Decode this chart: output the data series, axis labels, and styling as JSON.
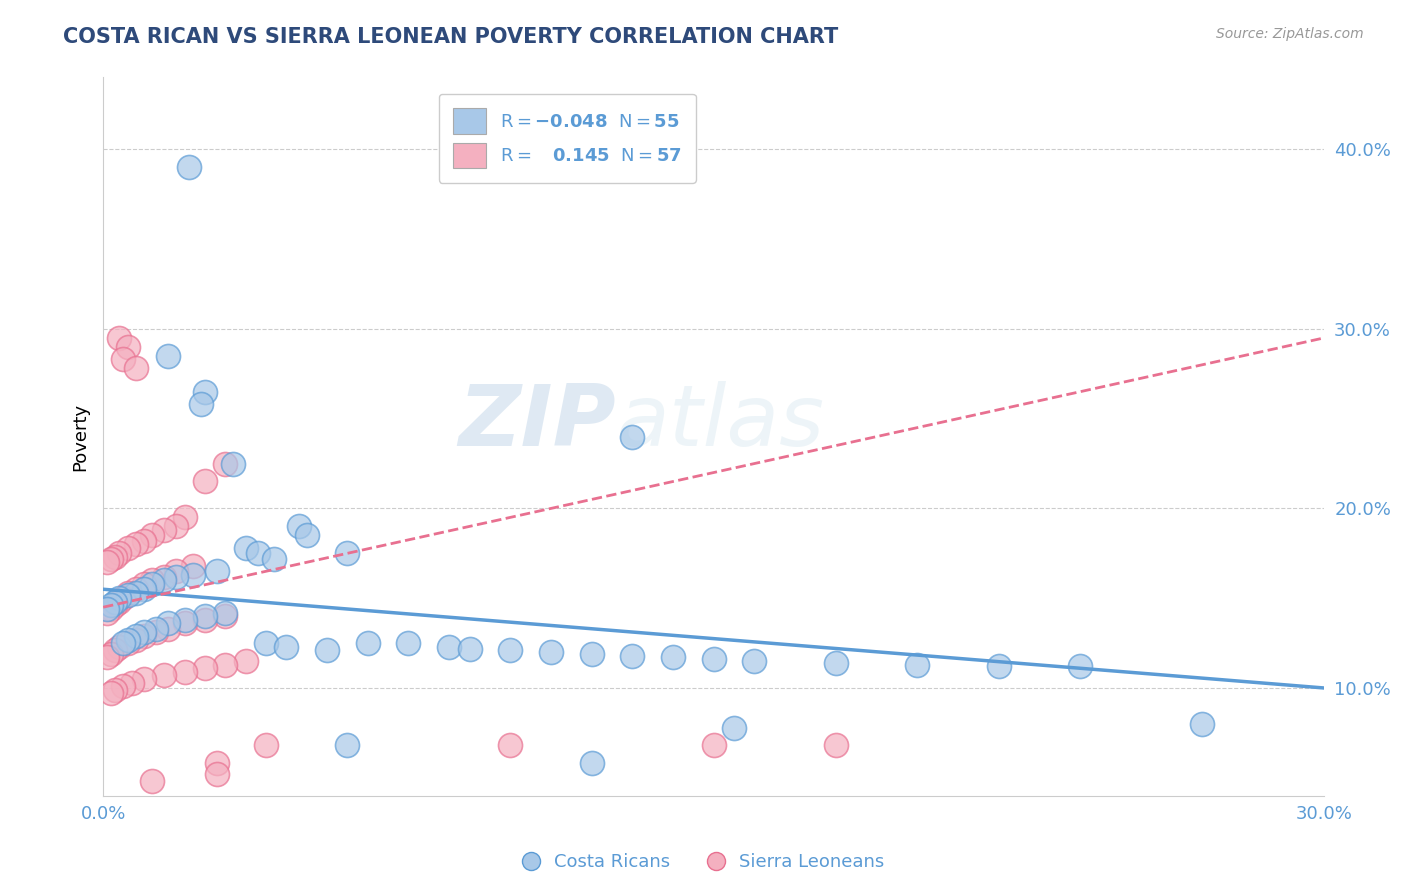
{
  "title": "COSTA RICAN VS SIERRA LEONEAN POVERTY CORRELATION CHART",
  "source": "Source: ZipAtlas.com",
  "ylabel_label": "Poverty",
  "ylabel_ticks": [
    0.1,
    0.2,
    0.3,
    0.4
  ],
  "ylabel_tick_labels": [
    "10.0%",
    "20.0%",
    "30.0%",
    "40.0%"
  ],
  "xlim": [
    0.0,
    0.3
  ],
  "ylim": [
    0.04,
    0.44
  ],
  "legend_bottom": [
    "Costa Ricans",
    "Sierra Leoneans"
  ],
  "blue_color": "#5b9bd5",
  "pink_color": "#e87090",
  "blue_fill": "#a8c8e8",
  "pink_fill": "#f4b0c0",
  "watermark_zip": "ZIP",
  "watermark_atlas": "atlas",
  "title_color": "#2e4a7a",
  "axis_label_color": "#5b9bd5",
  "grid_color": "#cccccc",
  "background_color": "#ffffff",
  "blue_scatter": [
    [
      0.021,
      0.39
    ],
    [
      0.016,
      0.285
    ],
    [
      0.025,
      0.265
    ],
    [
      0.024,
      0.258
    ],
    [
      0.13,
      0.24
    ],
    [
      0.032,
      0.225
    ],
    [
      0.048,
      0.19
    ],
    [
      0.05,
      0.185
    ],
    [
      0.035,
      0.178
    ],
    [
      0.038,
      0.175
    ],
    [
      0.042,
      0.172
    ],
    [
      0.06,
      0.175
    ],
    [
      0.028,
      0.165
    ],
    [
      0.022,
      0.163
    ],
    [
      0.018,
      0.162
    ],
    [
      0.015,
      0.16
    ],
    [
      0.012,
      0.158
    ],
    [
      0.01,
      0.155
    ],
    [
      0.008,
      0.153
    ],
    [
      0.006,
      0.152
    ],
    [
      0.004,
      0.15
    ],
    [
      0.003,
      0.148
    ],
    [
      0.002,
      0.146
    ],
    [
      0.001,
      0.144
    ],
    [
      0.03,
      0.142
    ],
    [
      0.025,
      0.14
    ],
    [
      0.02,
      0.138
    ],
    [
      0.016,
      0.136
    ],
    [
      0.013,
      0.133
    ],
    [
      0.01,
      0.131
    ],
    [
      0.008,
      0.129
    ],
    [
      0.006,
      0.127
    ],
    [
      0.005,
      0.125
    ],
    [
      0.04,
      0.125
    ],
    [
      0.045,
      0.123
    ],
    [
      0.055,
      0.121
    ],
    [
      0.065,
      0.125
    ],
    [
      0.075,
      0.125
    ],
    [
      0.085,
      0.123
    ],
    [
      0.09,
      0.122
    ],
    [
      0.1,
      0.121
    ],
    [
      0.11,
      0.12
    ],
    [
      0.12,
      0.119
    ],
    [
      0.13,
      0.118
    ],
    [
      0.14,
      0.117
    ],
    [
      0.15,
      0.116
    ],
    [
      0.16,
      0.115
    ],
    [
      0.18,
      0.114
    ],
    [
      0.2,
      0.113
    ],
    [
      0.22,
      0.112
    ],
    [
      0.24,
      0.112
    ],
    [
      0.27,
      0.08
    ],
    [
      0.155,
      0.078
    ],
    [
      0.06,
      0.068
    ],
    [
      0.12,
      0.058
    ]
  ],
  "pink_scatter": [
    [
      0.004,
      0.295
    ],
    [
      0.006,
      0.29
    ],
    [
      0.005,
      0.283
    ],
    [
      0.008,
      0.278
    ],
    [
      0.03,
      0.225
    ],
    [
      0.025,
      0.215
    ],
    [
      0.02,
      0.195
    ],
    [
      0.018,
      0.19
    ],
    [
      0.015,
      0.188
    ],
    [
      0.012,
      0.185
    ],
    [
      0.01,
      0.182
    ],
    [
      0.008,
      0.18
    ],
    [
      0.006,
      0.178
    ],
    [
      0.004,
      0.175
    ],
    [
      0.003,
      0.173
    ],
    [
      0.002,
      0.172
    ],
    [
      0.001,
      0.17
    ],
    [
      0.022,
      0.168
    ],
    [
      0.018,
      0.165
    ],
    [
      0.015,
      0.162
    ],
    [
      0.012,
      0.16
    ],
    [
      0.01,
      0.158
    ],
    [
      0.008,
      0.155
    ],
    [
      0.006,
      0.153
    ],
    [
      0.005,
      0.15
    ],
    [
      0.004,
      0.148
    ],
    [
      0.003,
      0.146
    ],
    [
      0.002,
      0.144
    ],
    [
      0.001,
      0.142
    ],
    [
      0.03,
      0.14
    ],
    [
      0.025,
      0.138
    ],
    [
      0.02,
      0.136
    ],
    [
      0.016,
      0.133
    ],
    [
      0.013,
      0.131
    ],
    [
      0.01,
      0.129
    ],
    [
      0.008,
      0.127
    ],
    [
      0.006,
      0.125
    ],
    [
      0.004,
      0.123
    ],
    [
      0.003,
      0.121
    ],
    [
      0.002,
      0.119
    ],
    [
      0.001,
      0.117
    ],
    [
      0.035,
      0.115
    ],
    [
      0.03,
      0.113
    ],
    [
      0.025,
      0.111
    ],
    [
      0.02,
      0.109
    ],
    [
      0.015,
      0.107
    ],
    [
      0.01,
      0.105
    ],
    [
      0.007,
      0.103
    ],
    [
      0.005,
      0.101
    ],
    [
      0.003,
      0.099
    ],
    [
      0.002,
      0.097
    ],
    [
      0.04,
      0.068
    ],
    [
      0.1,
      0.068
    ],
    [
      0.15,
      0.068
    ],
    [
      0.18,
      0.068
    ],
    [
      0.028,
      0.058
    ],
    [
      0.028,
      0.052
    ],
    [
      0.012,
      0.048
    ]
  ]
}
